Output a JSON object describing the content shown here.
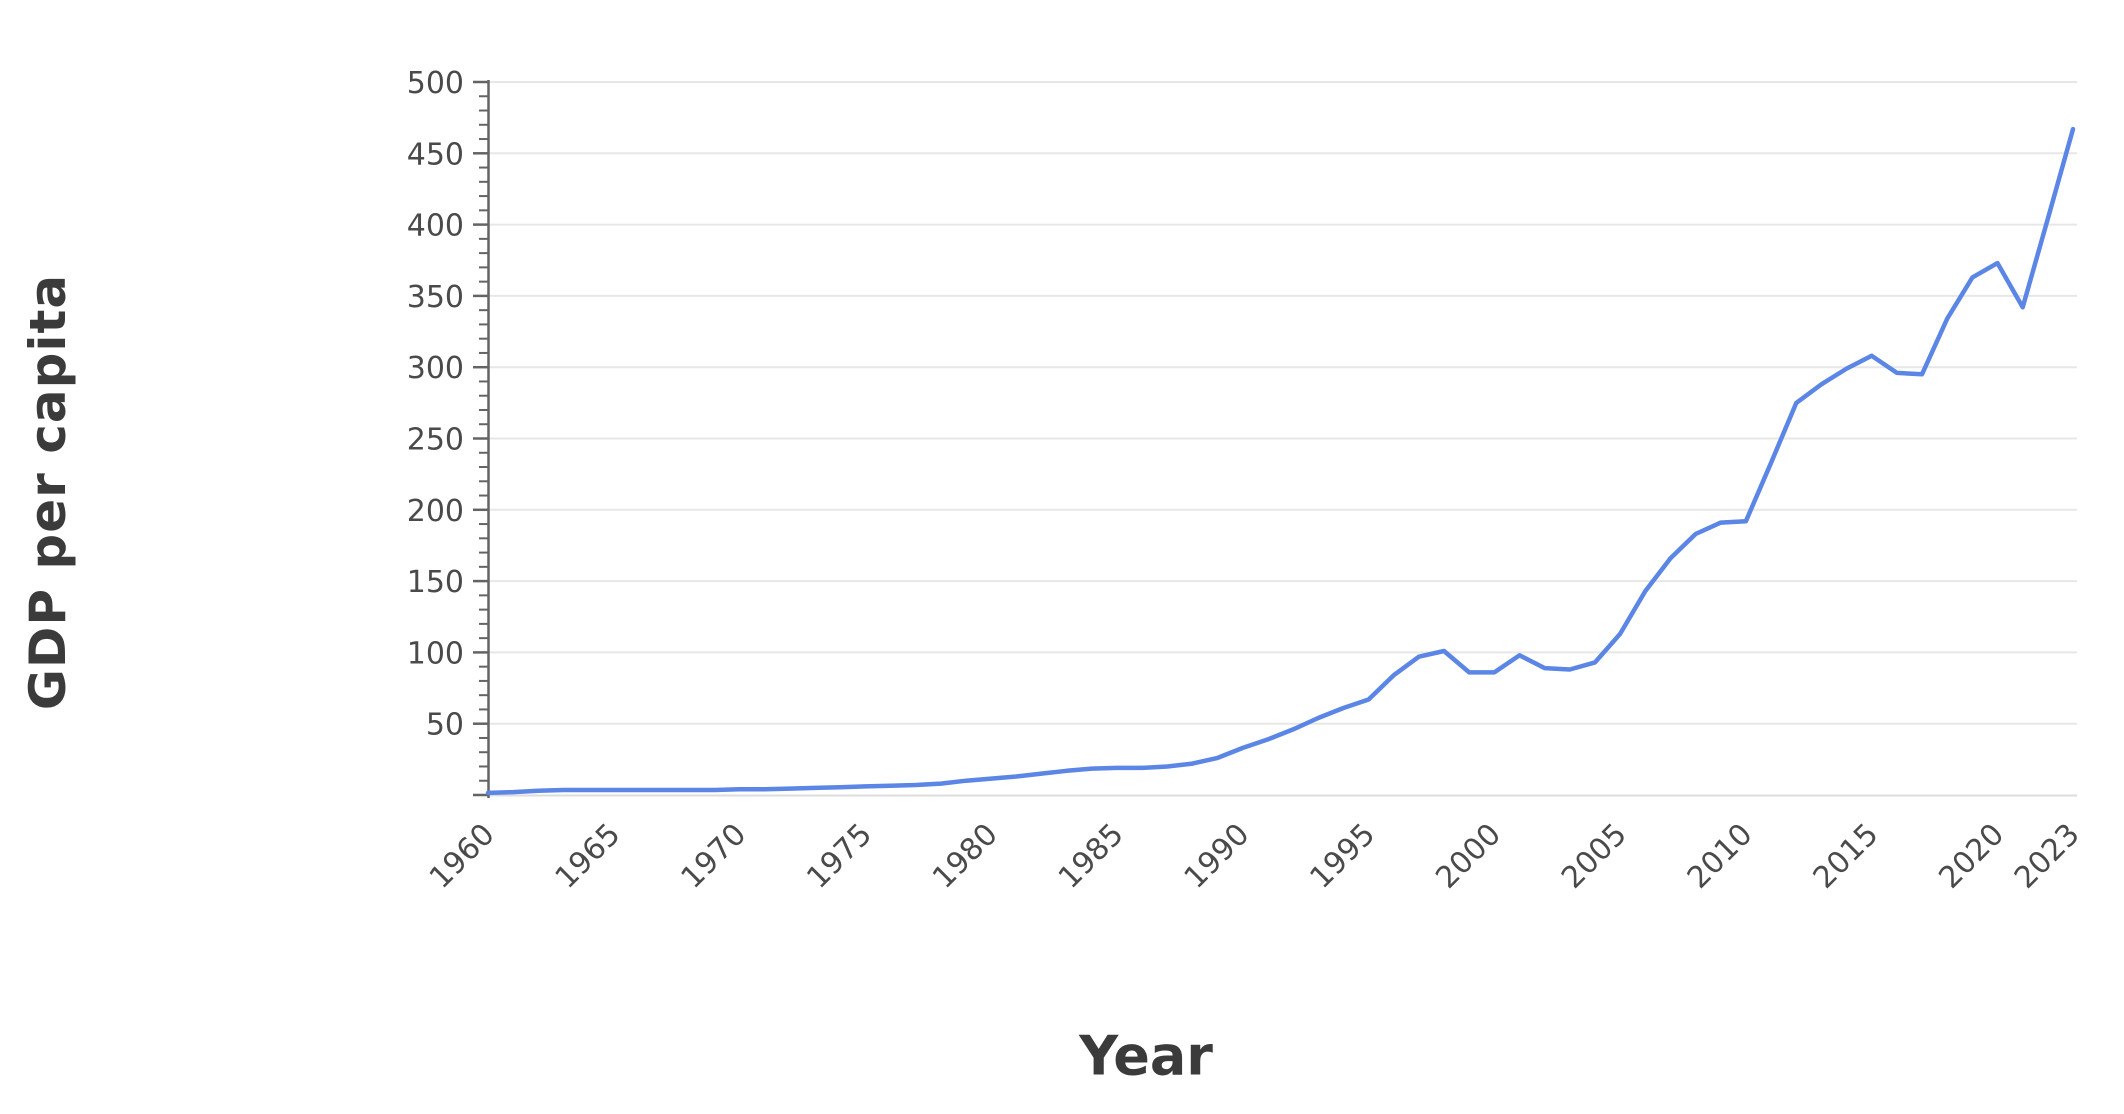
{
  "figure": {
    "background": "#ffffff"
  },
  "chart_data": {
    "type": "line",
    "title": "",
    "xlabel": "Year",
    "ylabel": "GDP per capita",
    "x": [
      1960,
      1961,
      1962,
      1963,
      1964,
      1965,
      1966,
      1967,
      1968,
      1969,
      1970,
      1971,
      1972,
      1973,
      1974,
      1975,
      1976,
      1977,
      1978,
      1979,
      1980,
      1981,
      1982,
      1983,
      1984,
      1985,
      1986,
      1987,
      1988,
      1989,
      1990,
      1991,
      1992,
      1993,
      1994,
      1995,
      1996,
      1997,
      1998,
      1999,
      2000,
      2001,
      2002,
      2003,
      2004,
      2005,
      2006,
      2007,
      2008,
      2009,
      2010,
      2011,
      2012,
      2013,
      2014,
      2015,
      2016,
      2017,
      2018,
      2019,
      2020,
      2021,
      2022,
      2023
    ],
    "series": [
      {
        "name": "GDP per capita",
        "values": [
          1.5,
          2,
          3,
          3.5,
          3.5,
          3.5,
          3.5,
          3.5,
          3.5,
          3.5,
          4,
          4,
          4.5,
          5,
          5.5,
          6,
          6.5,
          7,
          8,
          10,
          11.5,
          13,
          15,
          17,
          18.5,
          19,
          19,
          20,
          22,
          26,
          33,
          39,
          46,
          54,
          61,
          67,
          84,
          97,
          101,
          86,
          86,
          98,
          89,
          88,
          93,
          113,
          143,
          166,
          183,
          191,
          192,
          233,
          275,
          288,
          299,
          308,
          296,
          295,
          334,
          363,
          373,
          342,
          404,
          467
        ]
      }
    ],
    "ylim": [
      0,
      500
    ],
    "y_ticks": [
      50,
      100,
      150,
      200,
      250,
      300,
      350,
      400,
      450,
      500
    ],
    "y_minor_tick_step": 10,
    "x_tick_years": [
      1960,
      1965,
      1970,
      1975,
      1980,
      1985,
      1990,
      1995,
      2000,
      2005,
      2010,
      2015,
      2020,
      2023
    ],
    "x_tick_rotation_deg": 45,
    "grid": true,
    "legend_position": "none",
    "line_color": "#5b86e5",
    "axis_color": "#646464",
    "grid_color": "#e7e7e7",
    "zero_line_color": "#dddddd",
    "tick_label_color": "#4a4a4a",
    "axis_title_color": "#3b3b3b"
  }
}
